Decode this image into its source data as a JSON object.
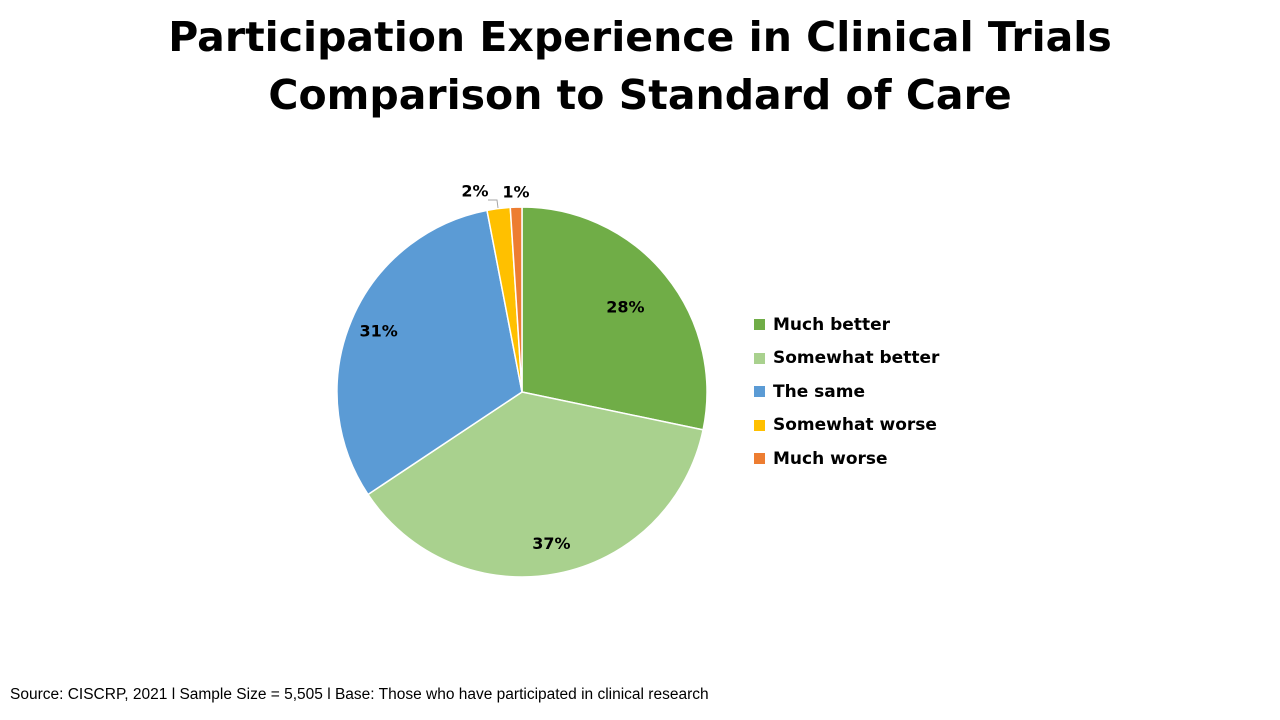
{
  "chart_data": {
    "type": "pie",
    "title": "Participation Experience in Clinical Trials",
    "subtitle": "Comparison to Standard of Care",
    "categories": [
      "Much better",
      "Somewhat better",
      "The same",
      "Somewhat worse",
      "Much worse"
    ],
    "values": [
      28,
      37,
      31,
      2,
      1
    ],
    "data_labels": [
      "28%",
      "37%",
      "31%",
      "2%",
      "1%"
    ],
    "colors": [
      "#70AD47",
      "#A9D18E",
      "#5B9BD5",
      "#FFC000",
      "#ED7D31"
    ],
    "legend_position": "right",
    "start_angle": "12 o'clock",
    "direction": "clockwise"
  },
  "footer": {
    "source": "Source: CISCRP, 2021 l Sample Size = 5,505 l Base: Those who have participated in clinical research"
  }
}
